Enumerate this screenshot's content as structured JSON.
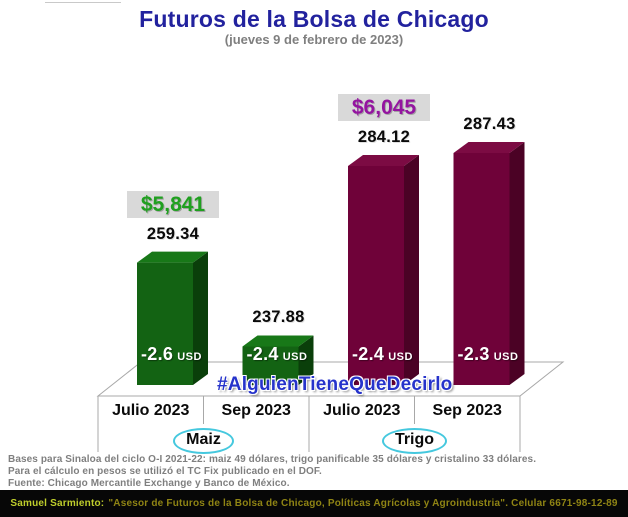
{
  "title": "Futuros de la Bolsa de Chicago",
  "subtitle": "(jueves 9 de febrero de 2023)",
  "watermark": "#AlguienTieneQueDecirlo",
  "chart_data": {
    "type": "bar",
    "title": "Futuros de la Bolsa de Chicago",
    "subtitle": "(jueves 9 de febrero de 2023)",
    "categories": [
      "Julio 2023",
      "Sep 2023",
      "Julio 2023",
      "Sep 2023"
    ],
    "group_labels": [
      "Maiz",
      "Trigo"
    ],
    "value_axis_visible": false,
    "grid": false,
    "legend": false,
    "ylim": [
      228,
      300
    ],
    "bars": [
      {
        "group": "Maiz",
        "month": "Julio 2023",
        "value": 259.34,
        "value_label": "259.34",
        "change": "-2.6",
        "change_unit": "USD",
        "price_tag": "$5,841",
        "price_tag_color": "#1FA01F",
        "faces": {
          "front": "#136313",
          "side": "#0A3F0A",
          "top": "#187818"
        }
      },
      {
        "group": "Maiz",
        "month": "Sep 2023",
        "value": 237.88,
        "value_label": "237.88",
        "change": "-2.4",
        "change_unit": "USD",
        "faces": {
          "front": "#136313",
          "side": "#0A3F0A",
          "top": "#187818"
        }
      },
      {
        "group": "Trigo",
        "month": "Julio 2023",
        "value": 284.12,
        "value_label": "284.12",
        "change": "-2.4",
        "change_unit": "USD",
        "price_tag": "$6,045",
        "price_tag_color": "#9414A0",
        "faces": {
          "front": "#6F0239",
          "side": "#4B0225",
          "top": "#7C0B43"
        }
      },
      {
        "group": "Trigo",
        "month": "Sep 2023",
        "value": 287.43,
        "value_label": "287.43",
        "change": "-2.3",
        "change_unit": "USD",
        "faces": {
          "front": "#6F0239",
          "side": "#4B0225",
          "top": "#7C0B43"
        }
      }
    ]
  },
  "footnotes": [
    "Bases para Sinaloa del ciclo O-I 2021-22: maiz 49 dólares, trigo panificable 35 dólares y cristalino 33 dólares.",
    "Para el cálculo en pesos se utilizó el TC Fix publicado en el DOF.",
    "Fuente: Chicago Mercantile Exchange y Banco de México."
  ],
  "footer_bar": {
    "name": "Samuel Sarmiento:",
    "text": "\"Asesor de Futuros de la Bolsa de Chicago, Políticas Agrícolas y Agroindustria\". Celular 6671-98-12-89"
  },
  "colors": {
    "title": "#22229E",
    "subtitle_gray": "#7F7F7F",
    "tag_bg": "#D9D9D9",
    "maiz_tag_text": "#1FA01F",
    "trigo_tag_text": "#9414A0",
    "watermark_blue": "#2633CB",
    "ellipse_cyan": "#45C8DE",
    "axis_line_gray": "#A8A8A8",
    "footer_name_yellow": "#BFCE2C",
    "footer_text_olive": "#8F8414"
  }
}
